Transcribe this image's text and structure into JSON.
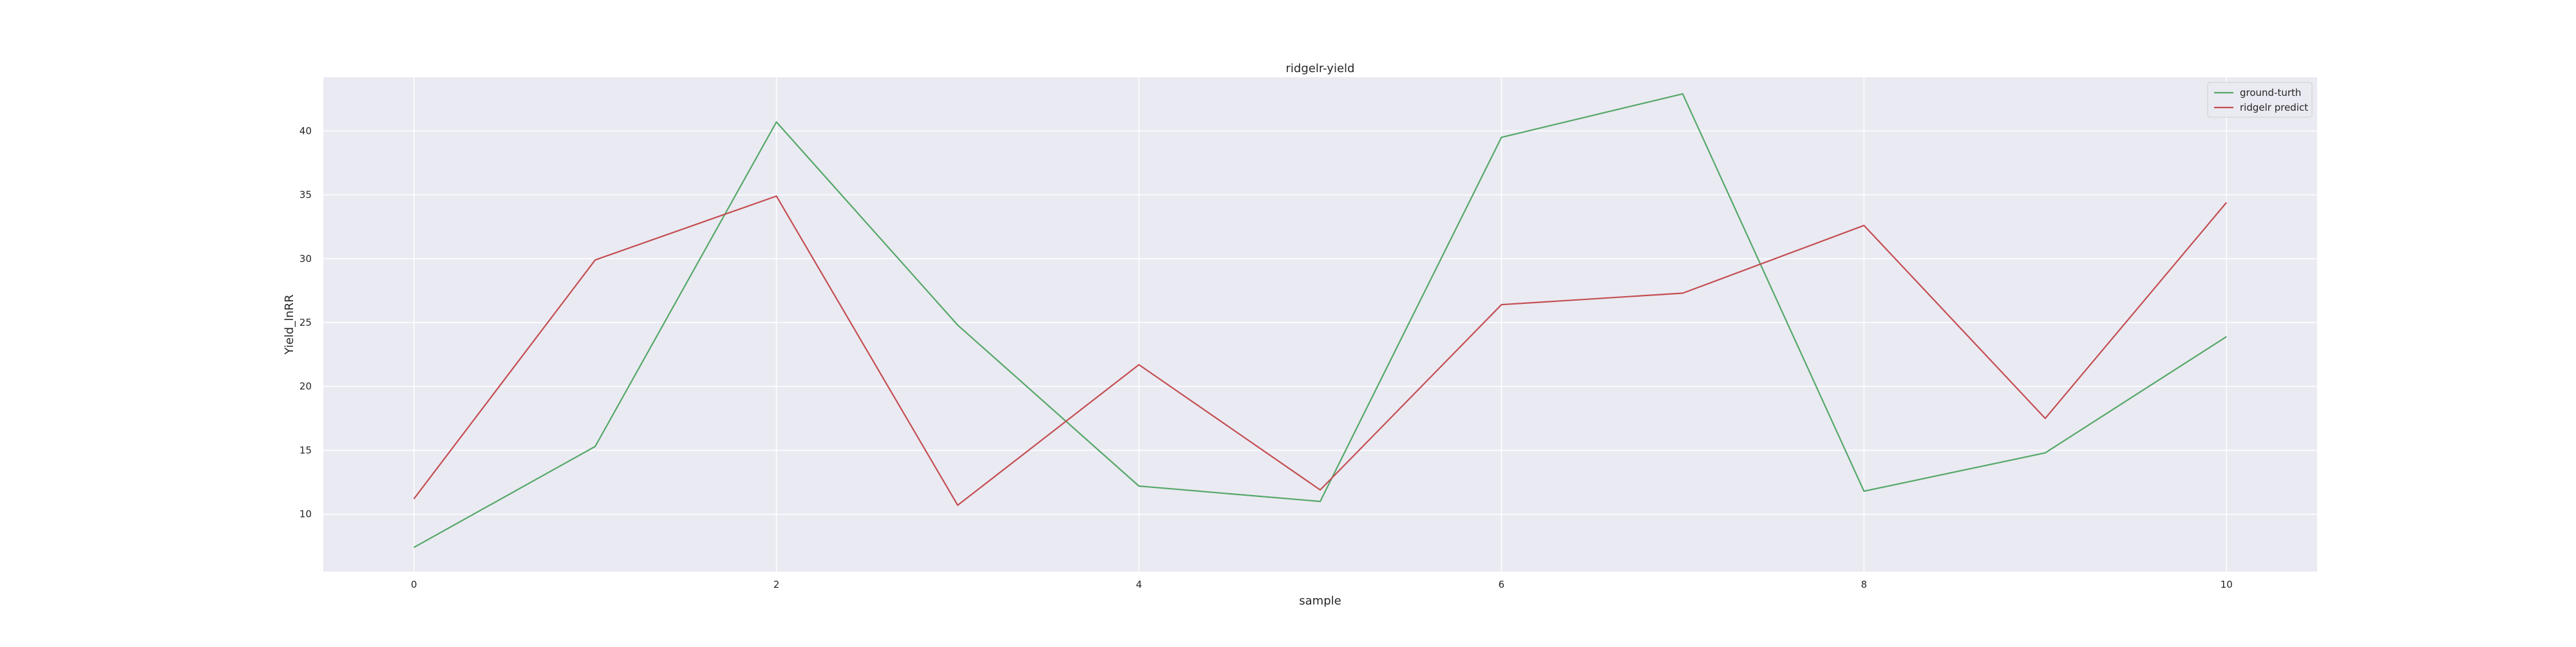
{
  "chart_data": {
    "type": "line",
    "title": "ridgelr-yield",
    "xlabel": "sample",
    "ylabel": "Yield_lnRR",
    "x": [
      0,
      1,
      2,
      3,
      4,
      5,
      6,
      7,
      8,
      9,
      10
    ],
    "xlim": [
      -0.5,
      10.5
    ],
    "ylim": [
      5.5,
      44.2
    ],
    "xticks": [
      0,
      2,
      4,
      6,
      8,
      10
    ],
    "yticks": [
      10,
      15,
      20,
      25,
      30,
      35,
      40
    ],
    "grid": true,
    "legend_position": "top-right",
    "background_color": "#eaeaf2",
    "grid_color": "#ffffff",
    "series": [
      {
        "name": "ground-turth",
        "color": "#55a868",
        "values": [
          7.4,
          15.3,
          40.7,
          24.8,
          12.2,
          11.0,
          39.5,
          42.9,
          11.8,
          14.8,
          23.9
        ]
      },
      {
        "name": "ridgelr predict",
        "color": "#c44e52",
        "values": [
          11.2,
          29.9,
          34.9,
          10.7,
          21.7,
          11.9,
          26.4,
          27.3,
          32.6,
          17.5,
          34.4
        ]
      }
    ]
  }
}
